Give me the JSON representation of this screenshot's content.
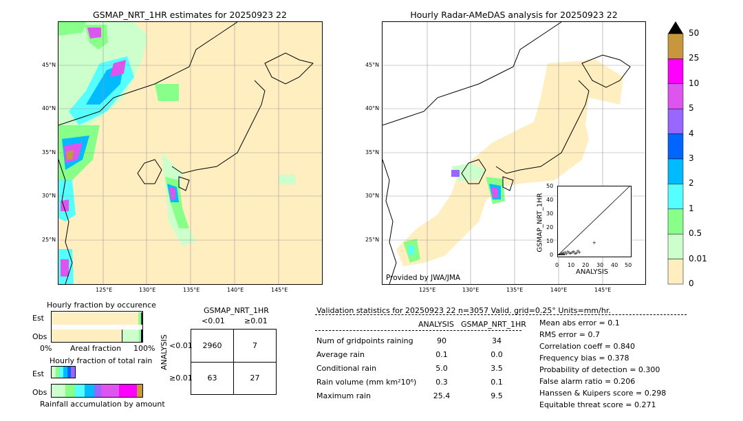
{
  "left_map": {
    "title": "GSMAP_NRT_1HR estimates for 20250923 22",
    "lat_labels": [
      "45°N",
      "40°N",
      "35°N",
      "30°N",
      "25°N"
    ],
    "lon_labels": [
      "125°E",
      "130°E",
      "135°E",
      "140°E",
      "145°E"
    ]
  },
  "right_map": {
    "title": "Hourly Radar-AMeDAS analysis for 20250923 22",
    "lat_labels": [
      "45°N",
      "40°N",
      "35°N",
      "30°N",
      "25°N"
    ],
    "lon_labels": [
      "125°E",
      "130°E",
      "135°E",
      "140°E",
      "145°E"
    ],
    "credit": "Provided by JWA/JMA"
  },
  "colorbar": {
    "labels": [
      "50",
      "25",
      "10",
      "5",
      "4",
      "3",
      "2",
      "1",
      "0.5",
      "0.01",
      "0"
    ],
    "colors": [
      "#c8963c",
      "#ff00ff",
      "#dd55ee",
      "#9966ff",
      "#0066ff",
      "#00bbff",
      "#55ffff",
      "#88ff88",
      "#ccffcc",
      "#ffeec0"
    ]
  },
  "chart_data": [
    {
      "type": "scatter",
      "xlabel": "ANALYSIS",
      "ylabel": "GSMAP_NRT_1HR",
      "xlim": [
        0,
        50
      ],
      "ylim": [
        0,
        50
      ],
      "x_ticks": [
        "0",
        "10",
        "20",
        "30",
        "40",
        "50"
      ],
      "y_ticks": [
        "0",
        "10",
        "20",
        "30",
        "40",
        "50"
      ],
      "points": [
        [
          0.5,
          0.3
        ],
        [
          1,
          0.5
        ],
        [
          1.5,
          1
        ],
        [
          2,
          0.2
        ],
        [
          2.5,
          1.5
        ],
        [
          3,
          0.8
        ],
        [
          3.5,
          2
        ],
        [
          4,
          1
        ],
        [
          5,
          2.5
        ],
        [
          6,
          1.5
        ],
        [
          7,
          3
        ],
        [
          8,
          2
        ],
        [
          9,
          1.8
        ],
        [
          10,
          2.5
        ],
        [
          11,
          3
        ],
        [
          12,
          1.5
        ],
        [
          13,
          2
        ],
        [
          14,
          3.5
        ],
        [
          15,
          2.5
        ],
        [
          25.4,
          9.5
        ],
        [
          0.2,
          0.1
        ],
        [
          0.8,
          0
        ],
        [
          1.2,
          0.4
        ],
        [
          3,
          0
        ],
        [
          4.5,
          0.5
        ]
      ]
    },
    {
      "type": "bar",
      "title": "Hourly fraction by occurence",
      "categories": [
        "Est",
        "Obs"
      ],
      "xlabels": [
        "0%",
        "Areal fraction",
        "100%"
      ]
    },
    {
      "type": "bar",
      "title": "Hourly fraction of total rain",
      "categories": [
        "Est",
        "Obs"
      ],
      "xlabel": "Rainfall accumulation by amount"
    }
  ],
  "contingency": {
    "col_header": "GSMAP_NRT_1HR",
    "col_labels": [
      "<0.01",
      "≥0.01"
    ],
    "row_header": "ANALYSIS",
    "row_labels": [
      "<0.01",
      "≥0.01"
    ],
    "cells": [
      "2960",
      "7",
      "63",
      "27"
    ]
  },
  "validation": {
    "header": "Validation statistics for 20250923 22  n=3057 Valid. grid=0.25° Units=mm/hr.",
    "col_analysis": "ANALYSIS",
    "col_gsmap": "GSMAP_NRT_1HR",
    "rows": [
      {
        "label": "Num of gridpoints raining",
        "a": "90",
        "g": "34"
      },
      {
        "label": "Average rain",
        "a": "0.1",
        "g": "0.0"
      },
      {
        "label": "Conditional rain",
        "a": "5.0",
        "g": "3.5"
      },
      {
        "label": "Rain volume (mm km²10⁶)",
        "a": "0.3",
        "g": "0.1"
      },
      {
        "label": "Maximum rain",
        "a": "25.4",
        "g": "9.5"
      }
    ],
    "scores": [
      "Mean abs error =    0.1",
      "RMS error =    0.7",
      "Correlation coeff =  0.840",
      "Frequency bias =  0.378",
      "Probability of detection =  0.300",
      "False alarm ratio =  0.206",
      "Hanssen & Kuipers score =  0.298",
      "Equitable threat score =  0.271"
    ]
  }
}
